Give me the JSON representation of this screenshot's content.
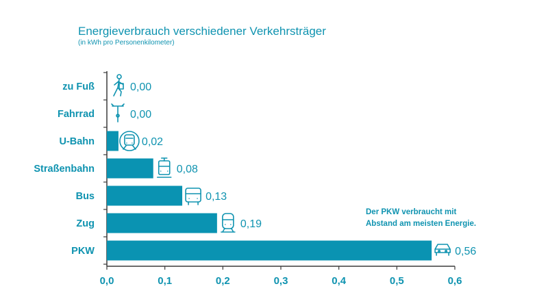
{
  "chart_data": {
    "type": "bar",
    "orientation": "horizontal",
    "title": "Energieverbrauch verschiedener Verkehrsträger",
    "subtitle": "(in kWh pro Personenkilometer)",
    "categories": [
      "zu Fuß",
      "Fahrrad",
      "U-Bahn",
      "Straßenbahn",
      "Bus",
      "Zug",
      "PKW"
    ],
    "values": [
      0.0,
      0.0,
      0.02,
      0.08,
      0.13,
      0.19,
      0.56
    ],
    "value_labels": [
      "0,00",
      "0,00",
      "0,02",
      "0,08",
      "0,13",
      "0,19",
      "0,56"
    ],
    "icons": [
      "pedestrian-icon",
      "bicycle-icon",
      "subway-icon",
      "tram-icon",
      "bus-icon",
      "train-icon",
      "car-icon"
    ],
    "xlim": [
      0,
      0.6
    ],
    "x_ticks": [
      0,
      0.1,
      0.2,
      0.3,
      0.4,
      0.5,
      0.6
    ],
    "x_tick_labels": [
      "0,0",
      "0,1",
      "0,2",
      "0,3",
      "0,4",
      "0,5",
      "0,6"
    ],
    "grid": false,
    "annotation": [
      "Der PKW verbraucht mit",
      "Abstand am meisten Energie."
    ],
    "colors": {
      "bar": "#0a93b2",
      "text": "#0f93b0",
      "axis": "#3a3a3a"
    }
  }
}
